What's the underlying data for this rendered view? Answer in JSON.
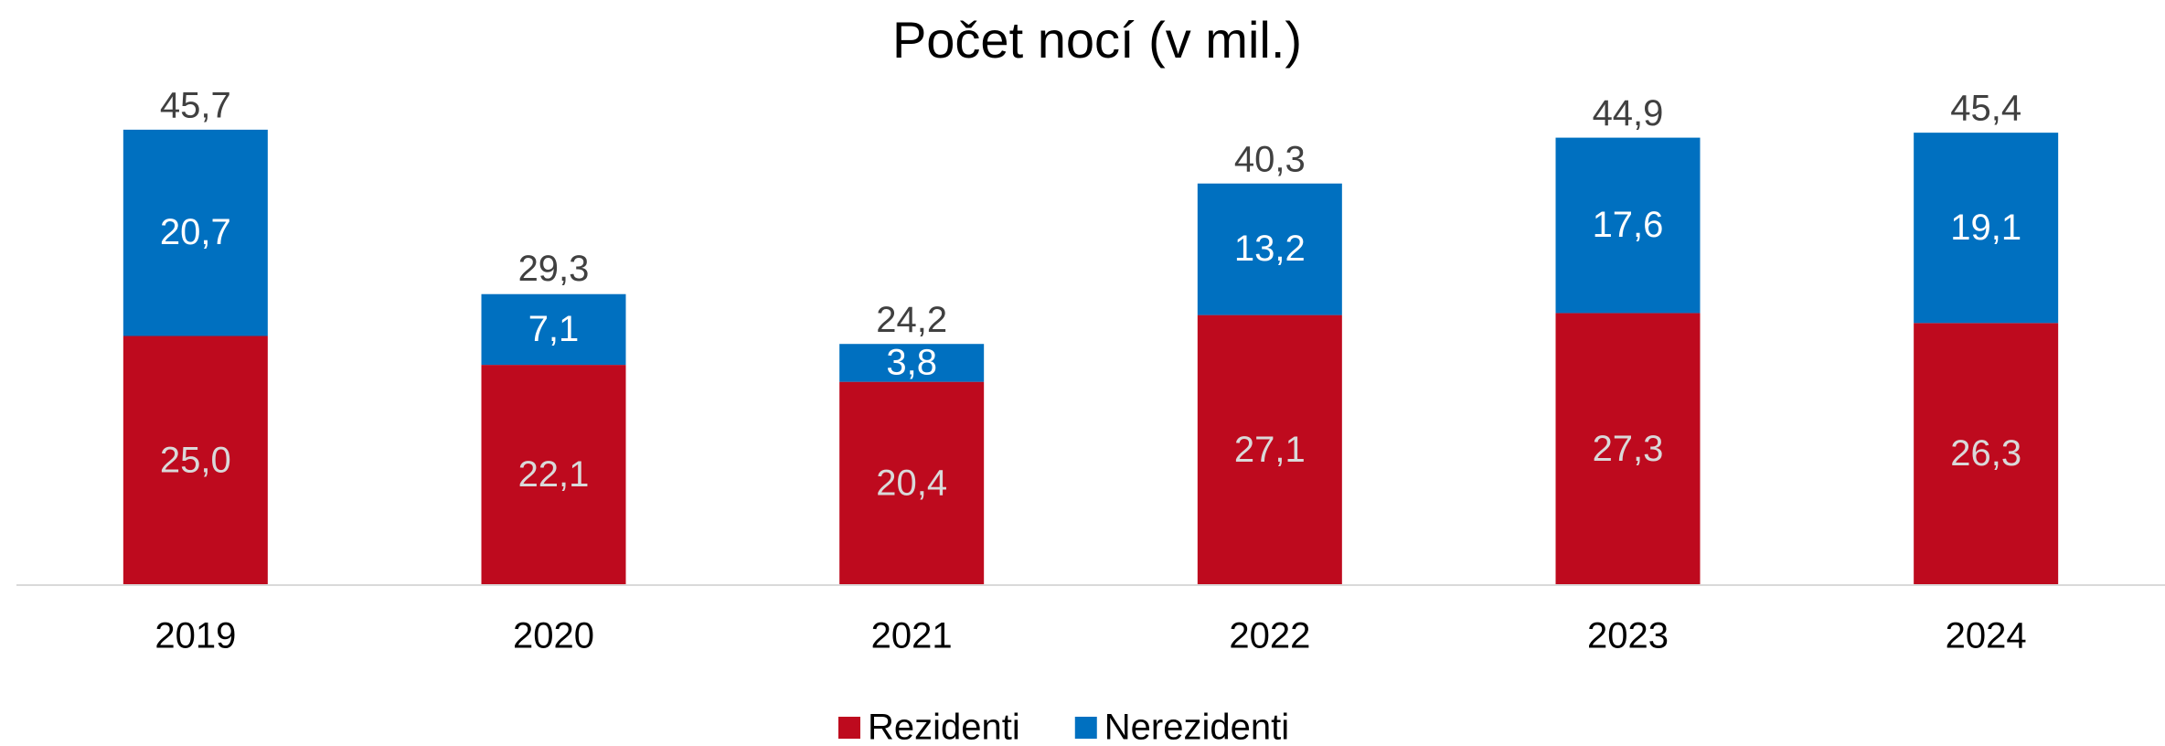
{
  "chart_data": {
    "type": "stacked_bar",
    "title": "Počet nocí (v mil.)",
    "categories": [
      "2019",
      "2020",
      "2021",
      "2022",
      "2023",
      "2024"
    ],
    "series": [
      {
        "name": "Rezidenti",
        "color": "#BE0A1E",
        "values": [
          25.0,
          22.1,
          20.4,
          27.1,
          27.3,
          26.3
        ],
        "value_labels": [
          "25,0",
          "22,1",
          "20,4",
          "27,1",
          "27,3",
          "26,3"
        ]
      },
      {
        "name": "Nerezidenti",
        "color": "#0070C0",
        "values": [
          20.7,
          7.1,
          3.8,
          13.2,
          17.6,
          19.1
        ],
        "value_labels": [
          "20,7",
          "7,1",
          "3,8",
          "13,2",
          "17,6",
          "19,1"
        ]
      }
    ],
    "totals": [
      45.7,
      29.3,
      24.2,
      40.3,
      44.9,
      45.4
    ],
    "total_labels": [
      "45,7",
      "29,3",
      "24,2",
      "40,3",
      "44,9",
      "45,4"
    ],
    "ylim": [
      0,
      50
    ],
    "legend": "bottom"
  }
}
